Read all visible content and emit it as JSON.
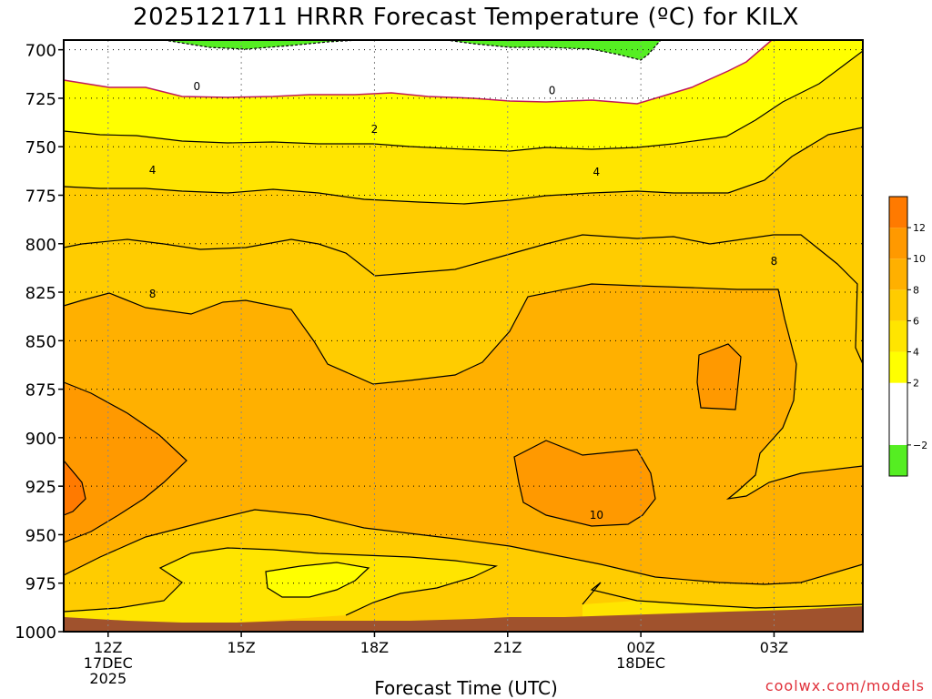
{
  "chart_data": {
    "type": "heatmap",
    "title": "2025121711 HRRR Forecast Temperature (ºC) for KILX",
    "xlabel": "Forecast Time (UTC)",
    "ylabel": "",
    "credit": "coolwx.com/models",
    "y_scale": "pressure (inverted)",
    "ylim": [
      1000,
      695
    ],
    "y_ticks": [
      "700",
      "725",
      "750",
      "775",
      "800",
      "825",
      "850",
      "875",
      "900",
      "925",
      "950",
      "975",
      "1000"
    ],
    "x_ticks": [
      {
        "hour": 12,
        "lines": [
          "12Z",
          "17DEC",
          "2025"
        ]
      },
      {
        "hour": 15,
        "lines": [
          "15Z"
        ]
      },
      {
        "hour": 18,
        "lines": [
          "18Z"
        ]
      },
      {
        "hour": 21,
        "lines": [
          "21Z"
        ]
      },
      {
        "hour": 24,
        "lines": [
          "00Z",
          "18DEC"
        ]
      },
      {
        "hour": 27,
        "lines": [
          "03Z"
        ]
      }
    ],
    "xlim": [
      11,
      29
    ],
    "grid": true,
    "colorbar": {
      "placement": "right",
      "levels": [
        -4,
        -2,
        0,
        2,
        4,
        6,
        8,
        10,
        12,
        14
      ],
      "colors": [
        "#55ee22",
        "#ffffff",
        "#ffffff",
        "#ffff00",
        "#ffe500",
        "#ffcc00",
        "#ffb000",
        "#ff9900",
        "#ff7a00"
      ],
      "tick_labels": [
        "−2",
        "2",
        "4",
        "6",
        "8",
        "10",
        "12"
      ]
    },
    "contour_labels": [
      "0",
      "0",
      "2",
      "4",
      "4",
      "8",
      "8",
      "10"
    ],
    "contour_label_pos": [
      {
        "hour": 14.0,
        "p": 719
      },
      {
        "hour": 22.0,
        "p": 721
      },
      {
        "hour": 18.0,
        "p": 741
      },
      {
        "hour": 13.0,
        "p": 762
      },
      {
        "hour": 23.0,
        "p": 763
      },
      {
        "hour": 13.0,
        "p": 826
      },
      {
        "hour": 27.0,
        "p": 809
      },
      {
        "hour": 23.0,
        "p": 940
      }
    ],
    "ground_color": "#a0522d"
  }
}
